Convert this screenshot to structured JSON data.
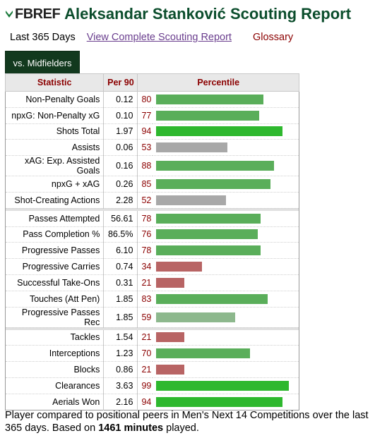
{
  "header": {
    "logo_text": "FBREF",
    "title": "Aleksandar Stanković Scouting Report"
  },
  "links": {
    "period": "Last 365 Days",
    "complete_report": "View Complete Scouting Report",
    "glossary": "Glossary"
  },
  "tab": {
    "label": "vs. Midfielders"
  },
  "table": {
    "columns": [
      "Statistic",
      "Per 90",
      "Percentile"
    ],
    "groups": [
      [
        {
          "stat": "Non-Penalty Goals",
          "per90": "0.12",
          "pct": 80
        },
        {
          "stat": "npxG: Non-Penalty xG",
          "per90": "0.10",
          "pct": 77
        },
        {
          "stat": "Shots Total",
          "per90": "1.97",
          "pct": 94
        },
        {
          "stat": "Assists",
          "per90": "0.06",
          "pct": 53
        },
        {
          "stat": "xAG: Exp. Assisted Goals",
          "per90": "0.16",
          "pct": 88
        },
        {
          "stat": "npxG + xAG",
          "per90": "0.26",
          "pct": 85
        },
        {
          "stat": "Shot-Creating Actions",
          "per90": "2.28",
          "pct": 52
        }
      ],
      [
        {
          "stat": "Passes Attempted",
          "per90": "56.61",
          "pct": 78
        },
        {
          "stat": "Pass Completion %",
          "per90": "86.5%",
          "pct": 76
        },
        {
          "stat": "Progressive Passes",
          "per90": "6.10",
          "pct": 78
        },
        {
          "stat": "Progressive Carries",
          "per90": "0.74",
          "pct": 34
        },
        {
          "stat": "Successful Take-Ons",
          "per90": "0.31",
          "pct": 21
        },
        {
          "stat": "Touches (Att Pen)",
          "per90": "1.85",
          "pct": 83
        },
        {
          "stat": "Progressive Passes Rec",
          "per90": "1.85",
          "pct": 59
        }
      ],
      [
        {
          "stat": "Tackles",
          "per90": "1.54",
          "pct": 21
        },
        {
          "stat": "Interceptions",
          "per90": "1.23",
          "pct": 70
        },
        {
          "stat": "Blocks",
          "per90": "0.86",
          "pct": 21
        },
        {
          "stat": "Clearances",
          "per90": "3.63",
          "pct": 99
        },
        {
          "stat": "Aerials Won",
          "per90": "2.16",
          "pct": 94
        }
      ]
    ]
  },
  "colors": {
    "title": "#0b4d2c",
    "tab_bg": "#12391e",
    "high": "#2eb82e",
    "mid_high": "#5aae5a",
    "mid_low": "#8db88d",
    "neutral": "#a8a8a8",
    "low": "#b86464",
    "pct_text": "#8b0000"
  },
  "footer": {
    "text_before": "Player compared to positional peers in Men's Next 14 Competitions over the last 365 days. Based on ",
    "minutes": "1461 minutes",
    "text_after": " played."
  }
}
